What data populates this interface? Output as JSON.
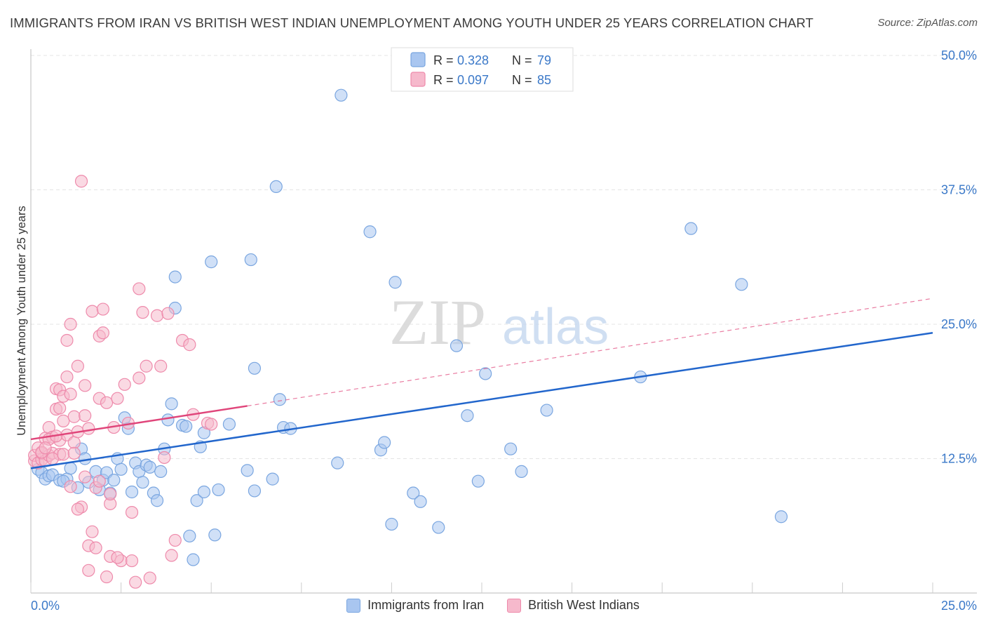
{
  "title": "IMMIGRANTS FROM IRAN VS BRITISH WEST INDIAN UNEMPLOYMENT AMONG YOUTH UNDER 25 YEARS CORRELATION CHART",
  "source": "Source: ZipAtlas.com",
  "watermark": {
    "zip": "ZIP",
    "atlas": "atlas"
  },
  "colors": {
    "blue": "#2266cc",
    "blue_fill": "#a9c6f0",
    "pink": "#e0457a",
    "pink_fill": "#f6b9cc",
    "value_text": "#3a78c8"
  },
  "legend_top": [
    {
      "r_label": "R =",
      "r_value": "0.328",
      "n_label": "N =",
      "n_value": "79"
    },
    {
      "r_label": "R =",
      "r_value": "0.097",
      "n_label": "N =",
      "n_value": "85"
    }
  ],
  "chart_data": {
    "type": "scatter",
    "title": "IMMIGRANTS FROM IRAN VS BRITISH WEST INDIAN UNEMPLOYMENT AMONG YOUTH UNDER 25 YEARS CORRELATION CHART",
    "xlabel": "",
    "ylabel": "Unemployment Among Youth under 25 years",
    "xlim": [
      0,
      25
    ],
    "ylim": [
      0,
      50
    ],
    "x_tick_labels": [
      "0.0%",
      "25.0%"
    ],
    "y_ticks": [
      12.5,
      25.0,
      37.5,
      50.0
    ],
    "y_tick_labels": [
      "12.5%",
      "25.0%",
      "37.5%",
      "50.0%"
    ],
    "grid": true,
    "legend_position": "top-center",
    "series": [
      {
        "name": "Immigrants from Iran",
        "r": 0.328,
        "n": 79,
        "trend": {
          "x": [
            0,
            25
          ],
          "y": [
            11.6,
            24.2
          ],
          "dashed_extension": false
        },
        "points": [
          [
            0.2,
            11.5
          ],
          [
            0.3,
            11.2
          ],
          [
            0.4,
            10.6
          ],
          [
            0.5,
            10.9
          ],
          [
            0.6,
            11.0
          ],
          [
            0.8,
            10.5
          ],
          [
            1.0,
            10.6
          ],
          [
            1.1,
            11.6
          ],
          [
            1.3,
            9.8
          ],
          [
            1.4,
            13.4
          ],
          [
            1.5,
            12.5
          ],
          [
            1.6,
            10.3
          ],
          [
            1.8,
            11.3
          ],
          [
            1.9,
            9.6
          ],
          [
            2.0,
            10.5
          ],
          [
            2.1,
            11.2
          ],
          [
            2.2,
            9.3
          ],
          [
            2.3,
            10.5
          ],
          [
            2.4,
            12.5
          ],
          [
            2.5,
            11.5
          ],
          [
            2.6,
            16.3
          ],
          [
            2.7,
            15.3
          ],
          [
            2.8,
            9.4
          ],
          [
            2.9,
            12.1
          ],
          [
            3.0,
            11.3
          ],
          [
            3.1,
            10.3
          ],
          [
            3.2,
            11.9
          ],
          [
            3.3,
            11.7
          ],
          [
            3.4,
            9.3
          ],
          [
            3.5,
            8.6
          ],
          [
            3.6,
            11.3
          ],
          [
            3.7,
            13.4
          ],
          [
            3.8,
            16.1
          ],
          [
            3.9,
            17.6
          ],
          [
            4.0,
            29.4
          ],
          [
            4.2,
            15.6
          ],
          [
            4.3,
            15.5
          ],
          [
            4.4,
            5.3
          ],
          [
            4.5,
            3.1
          ],
          [
            4.6,
            8.6
          ],
          [
            4.7,
            13.6
          ],
          [
            4.8,
            9.4
          ],
          [
            4.8,
            14.9
          ],
          [
            5.0,
            30.8
          ],
          [
            5.1,
            5.4
          ],
          [
            5.2,
            9.6
          ],
          [
            5.5,
            15.7
          ],
          [
            6.0,
            11.4
          ],
          [
            6.1,
            31.0
          ],
          [
            6.2,
            20.9
          ],
          [
            6.7,
            10.6
          ],
          [
            6.8,
            37.8
          ],
          [
            6.9,
            18.0
          ],
          [
            7.0,
            15.4
          ],
          [
            7.2,
            15.3
          ],
          [
            8.5,
            12.1
          ],
          [
            8.6,
            46.3
          ],
          [
            9.4,
            33.6
          ],
          [
            9.7,
            13.3
          ],
          [
            9.8,
            14.0
          ],
          [
            10.0,
            6.4
          ],
          [
            10.1,
            28.9
          ],
          [
            10.6,
            9.3
          ],
          [
            10.8,
            8.5
          ],
          [
            11.3,
            6.1
          ],
          [
            11.8,
            23.0
          ],
          [
            12.1,
            16.5
          ],
          [
            12.4,
            10.4
          ],
          [
            12.6,
            20.4
          ],
          [
            13.3,
            13.4
          ],
          [
            13.6,
            11.3
          ],
          [
            14.3,
            17.0
          ],
          [
            16.9,
            20.1
          ],
          [
            18.3,
            33.9
          ],
          [
            19.7,
            28.7
          ],
          [
            20.8,
            7.1
          ],
          [
            4.0,
            26.5
          ],
          [
            6.2,
            9.5
          ],
          [
            0.9,
            10.4
          ]
        ]
      },
      {
        "name": "British West Indians",
        "r": 0.097,
        "n": 85,
        "trend": {
          "x": [
            0,
            6.0
          ],
          "y": [
            14.3,
            17.4
          ],
          "dashed_to": [
            25,
            27.4
          ]
        },
        "points": [
          [
            0.1,
            12.3
          ],
          [
            0.1,
            12.8
          ],
          [
            0.2,
            13.5
          ],
          [
            0.2,
            12.1
          ],
          [
            0.3,
            12.4
          ],
          [
            0.3,
            13.0
          ],
          [
            0.4,
            14.4
          ],
          [
            0.4,
            12.3
          ],
          [
            0.5,
            15.4
          ],
          [
            0.5,
            12.8
          ],
          [
            0.6,
            14.5
          ],
          [
            0.6,
            13.0
          ],
          [
            0.7,
            17.1
          ],
          [
            0.7,
            19.0
          ],
          [
            0.8,
            18.9
          ],
          [
            0.8,
            14.2
          ],
          [
            0.8,
            12.9
          ],
          [
            0.9,
            16.0
          ],
          [
            0.9,
            18.3
          ],
          [
            1.0,
            14.7
          ],
          [
            1.0,
            23.5
          ],
          [
            1.0,
            20.1
          ],
          [
            1.1,
            18.5
          ],
          [
            1.1,
            25.0
          ],
          [
            1.2,
            16.4
          ],
          [
            1.2,
            14.0
          ],
          [
            1.3,
            21.1
          ],
          [
            1.3,
            15.0
          ],
          [
            1.4,
            38.3
          ],
          [
            1.4,
            8.0
          ],
          [
            1.5,
            16.5
          ],
          [
            1.5,
            10.8
          ],
          [
            1.6,
            15.3
          ],
          [
            1.6,
            4.4
          ],
          [
            1.7,
            5.7
          ],
          [
            1.7,
            26.2
          ],
          [
            1.8,
            9.8
          ],
          [
            1.8,
            4.2
          ],
          [
            1.9,
            23.9
          ],
          [
            1.9,
            18.1
          ],
          [
            2.0,
            26.4
          ],
          [
            2.0,
            24.2
          ],
          [
            2.1,
            17.7
          ],
          [
            2.1,
            1.5
          ],
          [
            2.2,
            8.3
          ],
          [
            2.2,
            3.4
          ],
          [
            2.3,
            15.4
          ],
          [
            2.4,
            18.1
          ],
          [
            2.5,
            3.0
          ],
          [
            2.6,
            19.4
          ],
          [
            2.7,
            15.8
          ],
          [
            2.8,
            3.0
          ],
          [
            2.8,
            7.5
          ],
          [
            3.0,
            20.0
          ],
          [
            3.0,
            28.3
          ],
          [
            3.1,
            26.1
          ],
          [
            3.2,
            21.1
          ],
          [
            3.3,
            1.4
          ],
          [
            3.5,
            25.8
          ],
          [
            3.6,
            21.1
          ],
          [
            3.7,
            12.6
          ],
          [
            3.8,
            26.0
          ],
          [
            3.9,
            3.5
          ],
          [
            4.0,
            4.9
          ],
          [
            4.2,
            23.5
          ],
          [
            4.4,
            23.1
          ],
          [
            4.5,
            16.6
          ],
          [
            4.9,
            15.8
          ],
          [
            5.0,
            15.7
          ],
          [
            1.1,
            9.9
          ],
          [
            0.6,
            12.5
          ],
          [
            0.9,
            12.9
          ],
          [
            2.9,
            1.0
          ],
          [
            1.3,
            7.8
          ],
          [
            0.3,
            13.1
          ],
          [
            0.5,
            14.3
          ],
          [
            2.4,
            3.3
          ],
          [
            1.6,
            2.1
          ],
          [
            0.7,
            14.6
          ],
          [
            1.2,
            13.0
          ],
          [
            0.4,
            13.5
          ],
          [
            1.9,
            10.4
          ],
          [
            2.2,
            9.2
          ],
          [
            0.8,
            17.2
          ],
          [
            1.5,
            19.3
          ]
        ]
      }
    ]
  }
}
